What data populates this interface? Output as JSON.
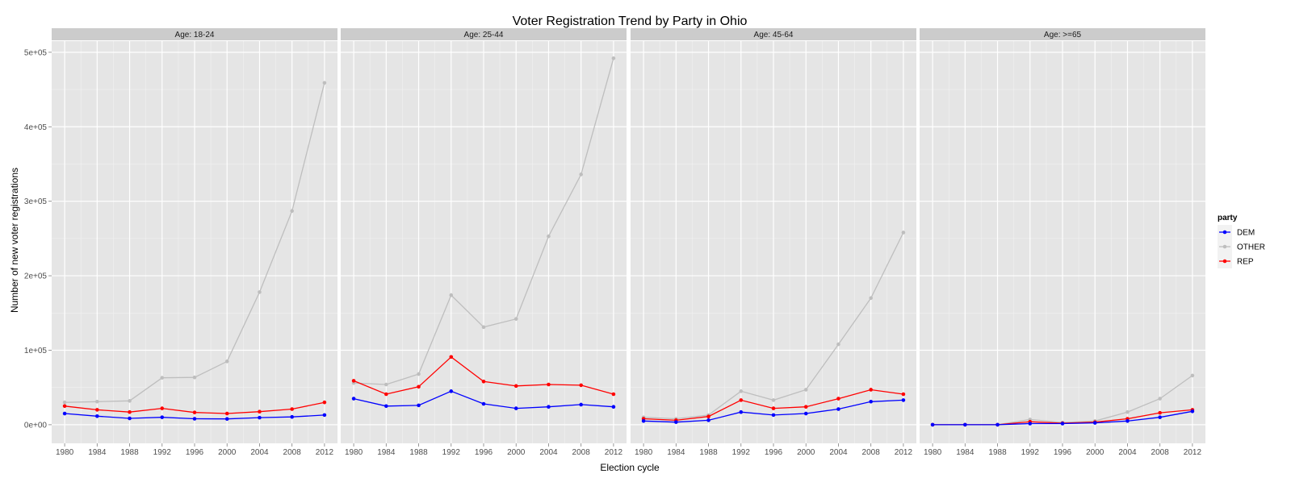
{
  "chart_data": {
    "type": "line",
    "title": "Voter Registration Trend by Party in Ohio",
    "xlabel": "Election cycle",
    "ylabel": "Number of new voter registrations",
    "x": [
      1980,
      1984,
      1988,
      1992,
      1996,
      2000,
      2004,
      2008,
      2012
    ],
    "ylim": [
      -25000,
      515000
    ],
    "y_ticks": [
      0,
      100000,
      200000,
      300000,
      400000,
      500000
    ],
    "y_tick_labels": [
      "0e+00",
      "1e+05",
      "2e+05",
      "3e+05",
      "4e+05",
      "5e+05"
    ],
    "grid": true,
    "legend": {
      "title": "party",
      "position": "right",
      "entries": [
        "DEM",
        "OTHER",
        "REP"
      ]
    },
    "series_colors": {
      "DEM": "#0000ff",
      "OTHER": "#bebebe",
      "REP": "#ff0000"
    },
    "panels": [
      {
        "label": "Age: 18-24",
        "series": [
          {
            "name": "DEM",
            "values": [
              15000,
              11500,
              8500,
              10000,
              8000,
              7800,
              9500,
              10500,
              13000
            ]
          },
          {
            "name": "OTHER",
            "values": [
              30000,
              31000,
              32000,
              63000,
              63500,
              85000,
              178000,
              287000,
              459000
            ]
          },
          {
            "name": "REP",
            "values": [
              25000,
              20000,
              17000,
              22000,
              16500,
              15000,
              17500,
              21000,
              30000
            ]
          }
        ]
      },
      {
        "label": "Age: 25-44",
        "series": [
          {
            "name": "DEM",
            "values": [
              35000,
              25000,
              26000,
              45000,
              28000,
              22000,
              24000,
              27000,
              24000
            ]
          },
          {
            "name": "OTHER",
            "values": [
              56000,
              54000,
              68000,
              174000,
              131000,
              142000,
              253000,
              336000,
              492000
            ]
          },
          {
            "name": "REP",
            "values": [
              59000,
              41000,
              51000,
              91000,
              58000,
              52000,
              54000,
              53000,
              41000
            ]
          }
        ]
      },
      {
        "label": "Age: 45-64",
        "series": [
          {
            "name": "DEM",
            "values": [
              5000,
              3500,
              6000,
              17000,
              13000,
              15000,
              21000,
              31000,
              33000
            ]
          },
          {
            "name": "OTHER",
            "values": [
              10000,
              8000,
              13000,
              45000,
              33000,
              47000,
              108000,
              170000,
              258000
            ]
          },
          {
            "name": "REP",
            "values": [
              8000,
              6000,
              11000,
              33000,
              22000,
              24000,
              35000,
              47000,
              41000
            ]
          }
        ]
      },
      {
        "label": "Age: >=65",
        "series": [
          {
            "name": "DEM",
            "values": [
              0,
              0,
              0,
              1500,
              1500,
              2500,
              5000,
              10000,
              18000
            ]
          },
          {
            "name": "OTHER",
            "values": [
              0,
              0,
              0,
              7000,
              3000,
              5000,
              17000,
              35000,
              66000
            ]
          },
          {
            "name": "REP",
            "values": [
              0,
              0,
              0,
              4000,
              2000,
              3500,
              8000,
              16000,
              20000
            ]
          }
        ]
      }
    ]
  }
}
